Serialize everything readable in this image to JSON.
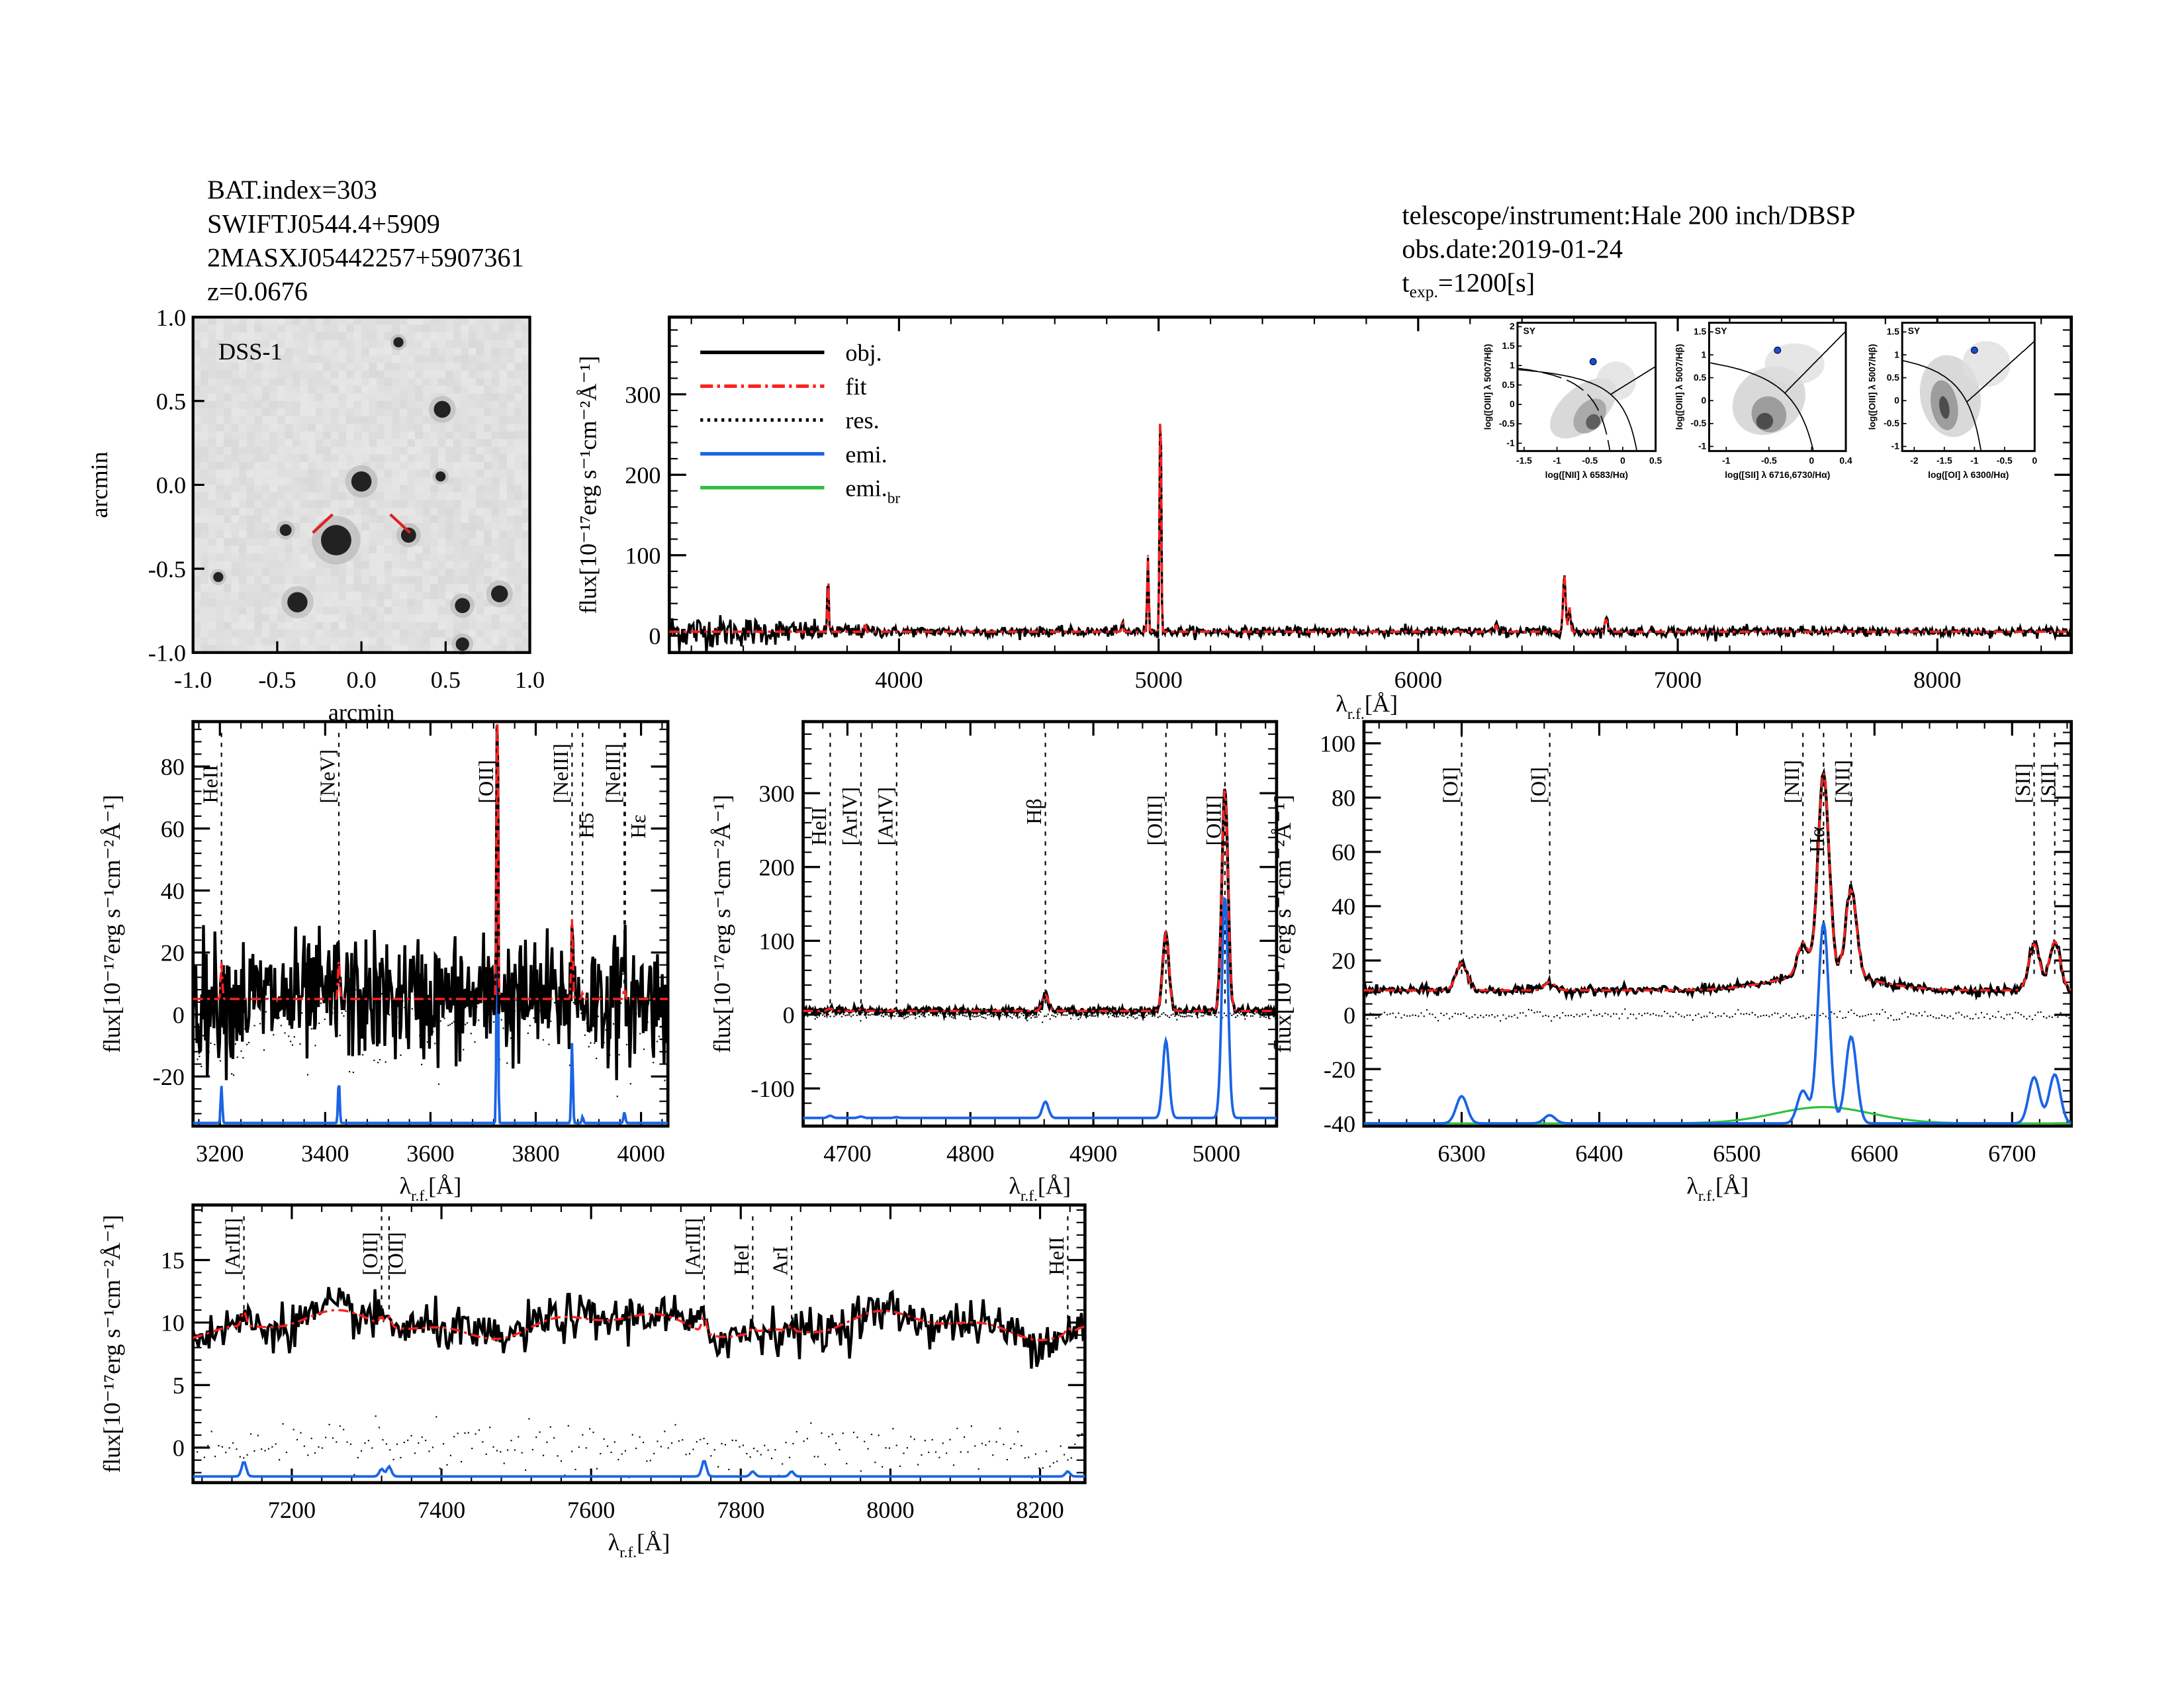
{
  "header_left": [
    "BAT.index=303",
    "SWIFTJ0544.4+5909",
    "2MASXJ05442257+5907361",
    "z=0.0676"
  ],
  "header_right": {
    "telescope": "telescope/instrument:Hale 200 inch/DBSP",
    "obsdate": "obs.date:2019-01-24",
    "texp_prefix": "t",
    "texp_sub": "exp.",
    "texp_value": "=1200[s]"
  },
  "colors": {
    "obj": "#000000",
    "fit": "#ff2020",
    "res": "#000000",
    "emi": "#1a64e6",
    "emi_br": "#30c040",
    "line_red": "#ff2020",
    "line_black": "#000000"
  },
  "axis_labels": {
    "flux": "flux[10⁻¹⁷erg s⁻¹cm⁻²Å⁻¹]",
    "lambda": "λ",
    "lambda_sub": "r.f.",
    "lambda_unit": "[Å]",
    "arcmin": "arcmin"
  },
  "legend": [
    {
      "label": "obj.",
      "style": "solid",
      "color": "#000000"
    },
    {
      "label": "fit",
      "style": "dashdot",
      "color": "#ff2020"
    },
    {
      "label": "res.",
      "style": "dotted",
      "color": "#000000"
    },
    {
      "label": "emi.",
      "style": "solid",
      "color": "#1a64e6"
    },
    {
      "label": "emi.",
      "sub": "br",
      "style": "solid",
      "color": "#30c040"
    }
  ],
  "dss": {
    "label": "DSS-1",
    "xticks": [
      "-1.0",
      "-0.5",
      "0.0",
      "0.5",
      "1.0"
    ],
    "yticks": [
      "-1.0",
      "-0.5",
      "0.0",
      "0.5",
      "1.0"
    ],
    "sources": [
      [
        -0.15,
        -0.33,
        0.09
      ],
      [
        0.0,
        0.02,
        0.06
      ],
      [
        0.48,
        0.45,
        0.05
      ],
      [
        0.28,
        -0.3,
        0.045
      ],
      [
        -0.38,
        -0.7,
        0.06
      ],
      [
        0.6,
        -0.72,
        0.045
      ],
      [
        0.82,
        -0.65,
        0.05
      ],
      [
        -0.45,
        -0.27,
        0.035
      ],
      [
        0.47,
        0.05,
        0.03
      ],
      [
        -0.85,
        -0.55,
        0.03
      ],
      [
        0.22,
        0.85,
        0.03
      ],
      [
        0.6,
        -0.95,
        0.04
      ]
    ]
  },
  "bpt": [
    {
      "xlabel": "log([NII] λ 6583/Hα)",
      "ylabel": "log([OIII] λ 5007/Hβ)",
      "class": "SY",
      "xlim": [
        -1.6,
        0.5
      ],
      "ylim": [
        -1.2,
        2.1
      ],
      "xticks": [
        -1.5,
        -1.0,
        -0.5,
        0.0,
        0.5
      ],
      "yticks": [
        -1.0,
        -0.5,
        0.0,
        0.5,
        1.0,
        1.5,
        2.0
      ],
      "point": [
        -0.45,
        1.1
      ],
      "type": "nii"
    },
    {
      "xlabel": "log([SII] λ 6716,6730/Hα)",
      "ylabel": "log([OIII] λ 5007/Hβ)",
      "class": "SY",
      "xlim": [
        -1.2,
        0.4
      ],
      "ylim": [
        -1.1,
        1.7
      ],
      "xticks": [
        -1.0,
        -0.5,
        0.0,
        0.4
      ],
      "yticks": [
        -1.0,
        -0.5,
        0.0,
        0.5,
        1.0,
        1.5
      ],
      "point": [
        -0.4,
        1.1
      ],
      "type": "sii"
    },
    {
      "xlabel": "log([OI] λ 6300/Hα)",
      "ylabel": "log([OIII] λ 5007/Hβ)",
      "class": "SY",
      "xlim": [
        -2.2,
        0.0
      ],
      "ylim": [
        -1.1,
        1.7
      ],
      "xticks": [
        -2.0,
        -1.5,
        -1.0,
        -0.5,
        0.0
      ],
      "yticks": [
        -1.0,
        -0.5,
        0.0,
        0.5,
        1.0,
        1.5
      ],
      "point": [
        -1.0,
        1.1
      ],
      "type": "oi"
    }
  ],
  "chart_data": [
    {
      "id": "full",
      "type": "line",
      "xlim": [
        3115,
        8516
      ],
      "ylim": [
        -21,
        396
      ],
      "xticks": [
        4000,
        5000,
        6000,
        7000,
        8000
      ],
      "yticks": [
        0,
        100,
        200,
        300
      ],
      "continuum": 5,
      "noise": 3,
      "blue_noise": 9,
      "emission_baseline": null,
      "lines": [
        {
          "wave": 3727,
          "amp": 70,
          "sigma": 2.5
        },
        {
          "wave": 3869,
          "amp": 15,
          "sigma": 2
        },
        {
          "wave": 4861,
          "amp": 12,
          "sigma": 3
        },
        {
          "wave": 4959,
          "amp": 95,
          "sigma": 3
        },
        {
          "wave": 5007,
          "amp": 300,
          "sigma": 3
        },
        {
          "wave": 6300,
          "amp": 8,
          "sigma": 4
        },
        {
          "wave": 6563,
          "amp": 70,
          "sigma": 5
        },
        {
          "wave": 6583,
          "amp": 30,
          "sigma": 4
        },
        {
          "wave": 6724,
          "amp": 15,
          "sigma": 6
        }
      ]
    },
    {
      "id": "oii",
      "type": "line",
      "xlim": [
        3149,
        4051
      ],
      "ylim": [
        -36,
        94.5
      ],
      "xticks": [
        3200,
        3400,
        3600,
        3800,
        4000
      ],
      "yticks": [
        -20,
        0,
        20,
        40,
        60,
        80
      ],
      "continuum": 5,
      "noise": 10,
      "emission_baseline": -35,
      "lines": [
        {
          "label": "HeII",
          "wave": 3203,
          "color": "red",
          "amp": 12,
          "sigma": 1.5
        },
        {
          "label": "[NeV]",
          "wave": 3426,
          "color": "black",
          "amp": 14,
          "sigma": 1.5
        },
        {
          "label": "[OII]",
          "wave": 3727,
          "color": "black",
          "amp": 112,
          "sigma": 1.3
        },
        {
          "label": "[NeIII]",
          "wave": 3869,
          "color": "black",
          "amp": 26,
          "sigma": 1.5
        },
        {
          "label": "H5",
          "wave": 3889,
          "color": "red",
          "amp": 2,
          "sigma": 1.5
        },
        {
          "label": "[NeIII]",
          "wave": 3968,
          "color": "red",
          "amp": 3,
          "sigma": 1.5
        },
        {
          "label": "Hε",
          "wave": 3970,
          "color": "red",
          "amp": 1,
          "sigma": 1.5
        }
      ]
    },
    {
      "id": "oiii",
      "type": "line",
      "xlim": [
        4664,
        5049
      ],
      "ylim": [
        -151,
        397
      ],
      "xticks": [
        4700,
        4800,
        4900,
        5000
      ],
      "yticks": [
        -100,
        0,
        100,
        200,
        300
      ],
      "continuum": 5,
      "noise": 2.5,
      "emission_baseline": -140,
      "lines": [
        {
          "label": "HeII",
          "wave": 4686,
          "color": "black",
          "amp": 3,
          "sigma": 2
        },
        {
          "label": "[ArIV]",
          "wave": 4711,
          "color": "red",
          "amp": 2,
          "sigma": 2
        },
        {
          "label": "[ArIV]",
          "wave": 4740,
          "color": "red",
          "amp": 1,
          "sigma": 2
        },
        {
          "label": "Hβ",
          "wave": 4861,
          "color": "black",
          "amp": 22,
          "sigma": 2.5
        },
        {
          "label": "[OIII]",
          "wave": 4959,
          "color": "black",
          "amp": 105,
          "sigma": 2.5
        },
        {
          "label": "[OIII]",
          "wave": 5007,
          "color": "black",
          "amp": 300,
          "sigma": 2.5
        }
      ]
    },
    {
      "id": "halpha",
      "type": "line",
      "xlim": [
        6229,
        6743
      ],
      "ylim": [
        -41,
        108
      ],
      "xticks": [
        6300,
        6400,
        6500,
        6600,
        6700
      ],
      "yticks": [
        -40,
        -20,
        0,
        20,
        40,
        60,
        80,
        100
      ],
      "continuum": 9,
      "noise": 0.8,
      "emission_baseline": -40,
      "broad": {
        "label": "Hα",
        "wave": 6563,
        "amp": 6,
        "sigma": 35
      },
      "lines": [
        {
          "label": "[OI]",
          "wave": 6300,
          "color": "black",
          "amp": 10,
          "sigma": 4
        },
        {
          "label": "[OI]",
          "wave": 6364,
          "color": "black",
          "amp": 3,
          "sigma": 4
        },
        {
          "label": "[NII]",
          "wave": 6548,
          "color": "black",
          "amp": 12,
          "sigma": 4
        },
        {
          "label": "Hα",
          "wave": 6563,
          "color": "black",
          "amp": 74,
          "sigma": 4
        },
        {
          "label": "[NII]",
          "wave": 6583,
          "color": "black",
          "amp": 32,
          "sigma": 4
        },
        {
          "label": "[SII]",
          "wave": 6716,
          "color": "black",
          "amp": 17,
          "sigma": 4
        },
        {
          "label": "[SII]",
          "wave": 6731,
          "color": "black",
          "amp": 18,
          "sigma": 4
        }
      ]
    },
    {
      "id": "red",
      "type": "line",
      "xlim": [
        7068,
        8260
      ],
      "ylim": [
        -2.8,
        19.4
      ],
      "xticks": [
        7200,
        7400,
        7600,
        7800,
        8000,
        8200
      ],
      "yticks": [
        0,
        5,
        10,
        15
      ],
      "continuum": 9.8,
      "noise": 0.9,
      "emission_baseline": -2.3,
      "lines": [
        {
          "label": "[ArIII]",
          "wave": 7136,
          "color": "black",
          "amp": 1.2,
          "sigma": 3
        },
        {
          "label": "[OII]",
          "wave": 7320,
          "color": "black",
          "amp": 0.6,
          "sigma": 3
        },
        {
          "label": "[OII]",
          "wave": 7330,
          "color": "black",
          "amp": 0.8,
          "sigma": 3
        },
        {
          "label": "[ArIII]",
          "wave": 7751,
          "color": "black",
          "amp": 1.3,
          "sigma": 3
        },
        {
          "label": "HeI",
          "wave": 7816,
          "color": "red",
          "amp": 0.4,
          "sigma": 3
        },
        {
          "label": "ArI",
          "wave": 7868,
          "color": "red",
          "amp": 0.4,
          "sigma": 3
        },
        {
          "label": "HeII",
          "wave": 8237,
          "color": "red",
          "amp": 0.4,
          "sigma": 3
        }
      ]
    }
  ]
}
